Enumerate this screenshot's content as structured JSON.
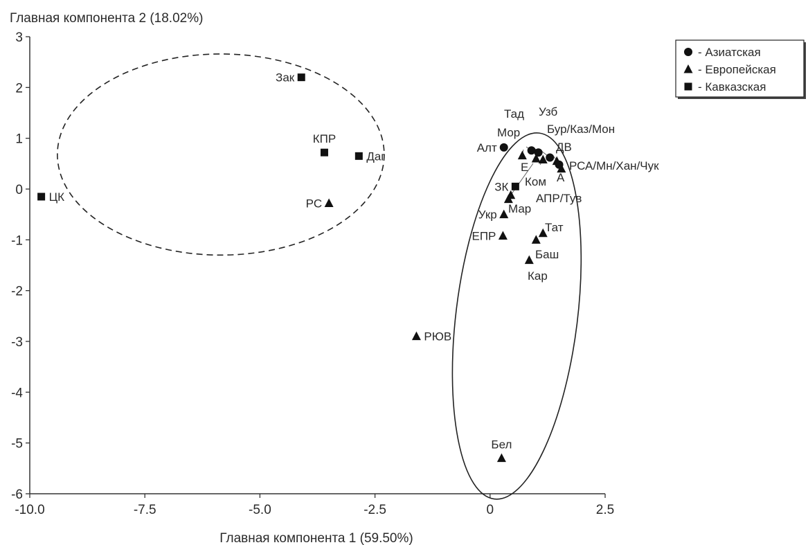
{
  "chart_data": {
    "type": "scatter",
    "xlabel": "Главная компонента 1 (59.50%)",
    "ylabel": "Главная компонента 2 (18.02%)",
    "xlim": [
      -10.0,
      2.5
    ],
    "ylim": [
      -6,
      3
    ],
    "x_ticks": [
      -10.0,
      -7.5,
      -5.0,
      -2.5,
      0,
      2.5
    ],
    "x_tick_labels": [
      "-10.0",
      "-7.5",
      "-5.0",
      "-2.5",
      "0",
      "2.5"
    ],
    "y_ticks": [
      3,
      2,
      1,
      0,
      -1,
      -2,
      -3,
      -4,
      -5,
      -6
    ],
    "y_tick_labels": [
      "3",
      "2",
      "1",
      "0",
      "-1",
      "-2",
      "-3",
      "-4",
      "-5",
      "-6"
    ],
    "grid": false,
    "legend_position": "top-right",
    "legend": [
      {
        "marker": "circle",
        "label": "- Азиатская"
      },
      {
        "marker": "triangle",
        "label": "- Европейская"
      },
      {
        "marker": "square",
        "label": "- Кавказская"
      }
    ],
    "points": [
      {
        "label": "Зак",
        "x": -4.1,
        "y": 2.2,
        "marker": "square",
        "anchor": "left"
      },
      {
        "label": "КПР",
        "x": -3.6,
        "y": 0.72,
        "marker": "square",
        "anchor": "above"
      },
      {
        "label": "Даг",
        "x": -2.85,
        "y": 0.65,
        "marker": "square",
        "anchor": "right"
      },
      {
        "label": "ЦК",
        "x": -9.75,
        "y": -0.15,
        "marker": "square",
        "anchor": "right"
      },
      {
        "label": "РС",
        "x": -3.5,
        "y": -0.28,
        "marker": "triangle",
        "anchor": "left"
      },
      {
        "label": "Алт",
        "x": 0.3,
        "y": 0.82,
        "marker": "circle",
        "anchor": "left"
      },
      {
        "label": "Мор",
        "x": 0.7,
        "y": 0.66,
        "marker": "triangle",
        "anchor": "none"
      },
      {
        "label": "Тад",
        "x": 0.9,
        "y": 0.76,
        "marker": "circle",
        "anchor": "none"
      },
      {
        "label": "Узб",
        "x": 1.05,
        "y": 0.72,
        "marker": "circle",
        "anchor": "none"
      },
      {
        "label": "Е",
        "x": 1.0,
        "y": 0.6,
        "marker": "triangle",
        "anchor": "none"
      },
      {
        "label": "Ком",
        "x": 1.15,
        "y": 0.58,
        "marker": "triangle",
        "anchor": "none"
      },
      {
        "label": "Бур/Каз/Мон",
        "x": 1.3,
        "y": 0.62,
        "marker": "circle",
        "anchor": "none"
      },
      {
        "label": "ДВ",
        "x": 1.45,
        "y": 0.55,
        "marker": "triangle",
        "anchor": "none"
      },
      {
        "label": "РСА/Мн/Хан/Чук",
        "x": 1.5,
        "y": 0.48,
        "marker": "circle",
        "anchor": "none"
      },
      {
        "label": "А",
        "x": 1.55,
        "y": 0.4,
        "marker": "triangle",
        "anchor": "none"
      },
      {
        "label": "ЗК",
        "x": 0.55,
        "y": 0.05,
        "marker": "square",
        "anchor": "left"
      },
      {
        "label": "АПР/Тув",
        "x": 0.45,
        "y": -0.12,
        "marker": "triangle",
        "anchor": "none"
      },
      {
        "label": "Мар",
        "x": 0.4,
        "y": -0.2,
        "marker": "triangle",
        "anchor": "none"
      },
      {
        "label": "Укр",
        "x": 0.3,
        "y": -0.5,
        "marker": "triangle",
        "anchor": "left"
      },
      {
        "label": "ЕПР",
        "x": 0.28,
        "y": -0.92,
        "marker": "triangle",
        "anchor": "left"
      },
      {
        "label": "Тат",
        "x": 1.15,
        "y": -0.87,
        "marker": "triangle",
        "anchor": "none"
      },
      {
        "label": "Баш",
        "x": 1.0,
        "y": -1.0,
        "marker": "triangle",
        "anchor": "none"
      },
      {
        "label": "Кар",
        "x": 0.85,
        "y": -1.4,
        "marker": "triangle",
        "anchor": "none"
      },
      {
        "label": "РЮВ",
        "x": -1.6,
        "y": -2.9,
        "marker": "triangle",
        "anchor": "right"
      },
      {
        "label": "Бел",
        "x": 0.25,
        "y": -5.3,
        "marker": "triangle",
        "anchor": "above"
      }
    ],
    "ellipses": [
      {
        "name": "Кавказская",
        "style": "dashed",
        "center": [
          -5.85,
          0.68
        ],
        "rx": 3.55,
        "ry": 1.98
      },
      {
        "name": "Европейская/Азиатская",
        "style": "solid",
        "center": [
          0.58,
          -2.5
        ],
        "rx": 1.32,
        "ry": 3.63,
        "rotation_deg": 7
      }
    ]
  }
}
